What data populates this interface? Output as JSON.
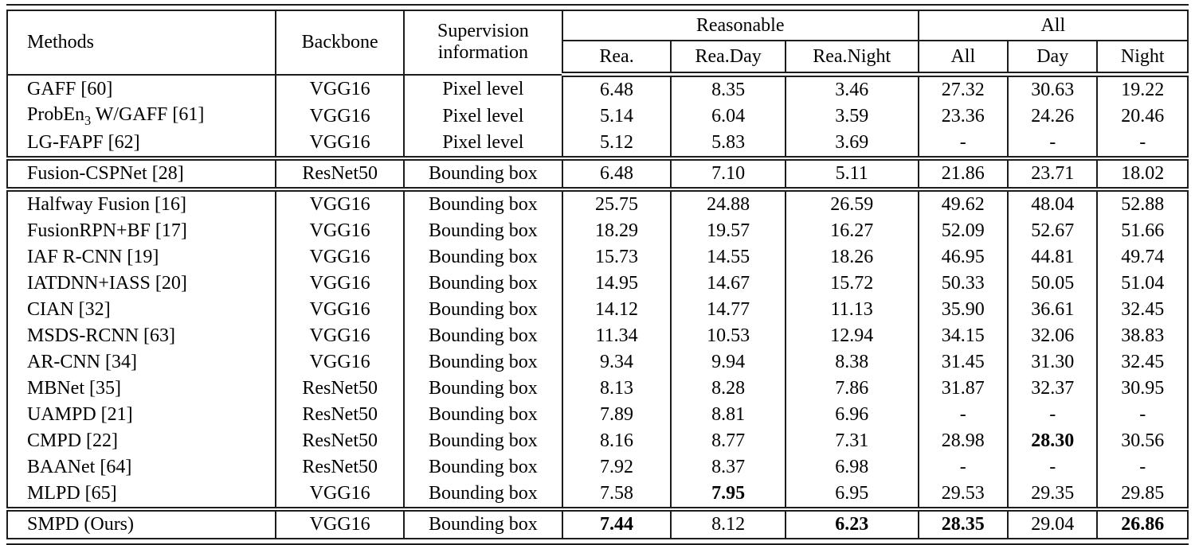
{
  "colors": {
    "text": "#000000",
    "border": "#1c1c1c",
    "background": "#ffffff"
  },
  "table": {
    "header": {
      "col_methods": "Methods",
      "col_backbone": "Backbone",
      "col_supervision": "Supervision information",
      "group_reasonable": "Reasonable",
      "group_all": "All",
      "sub_columns": [
        "Rea.",
        "Rea.Day",
        "Rea.Night",
        "All",
        "Day",
        "Night"
      ]
    },
    "groups": [
      {
        "rows": [
          {
            "method": [
              {
                "t": "GAFF [60]"
              }
            ],
            "backbone": "VGG16",
            "supervision": "Pixel level",
            "values": [
              "6.48",
              "8.35",
              "3.46",
              "27.32",
              "30.63",
              "19.22"
            ],
            "bold": [
              false,
              false,
              false,
              false,
              false,
              false
            ]
          },
          {
            "method": [
              {
                "t": "ProbEn"
              },
              {
                "t": "3",
                "sub": true
              },
              {
                "t": " W/GAFF [61]"
              }
            ],
            "backbone": "VGG16",
            "supervision": "Pixel level",
            "values": [
              "5.14",
              "6.04",
              "3.59",
              "23.36",
              "24.26",
              "20.46"
            ],
            "bold": [
              false,
              false,
              false,
              false,
              false,
              false
            ]
          },
          {
            "method": [
              {
                "t": "LG-FAPF [62]"
              }
            ],
            "backbone": "VGG16",
            "supervision": "Pixel level",
            "values": [
              "5.12",
              "5.83",
              "3.69",
              "-",
              "-",
              "-"
            ],
            "bold": [
              false,
              false,
              false,
              false,
              false,
              false
            ]
          }
        ]
      },
      {
        "rows": [
          {
            "method": [
              {
                "t": "Fusion-CSPNet [28]"
              }
            ],
            "backbone": "ResNet50",
            "supervision": "Bounding box",
            "values": [
              "6.48",
              "7.10",
              "5.11",
              "21.86",
              "23.71",
              "18.02"
            ],
            "bold": [
              false,
              false,
              false,
              false,
              false,
              false
            ]
          }
        ]
      },
      {
        "rows": [
          {
            "method": [
              {
                "t": "Halfway Fusion [16]"
              }
            ],
            "backbone": "VGG16",
            "supervision": "Bounding box",
            "values": [
              "25.75",
              "24.88",
              "26.59",
              "49.62",
              "48.04",
              "52.88"
            ],
            "bold": [
              false,
              false,
              false,
              false,
              false,
              false
            ]
          },
          {
            "method": [
              {
                "t": "FusionRPN+BF [17]"
              }
            ],
            "backbone": "VGG16",
            "supervision": "Bounding box",
            "values": [
              "18.29",
              "19.57",
              "16.27",
              "52.09",
              "52.67",
              "51.66"
            ],
            "bold": [
              false,
              false,
              false,
              false,
              false,
              false
            ]
          },
          {
            "method": [
              {
                "t": "IAF R-CNN [19]"
              }
            ],
            "backbone": "VGG16",
            "supervision": "Bounding box",
            "values": [
              "15.73",
              "14.55",
              "18.26",
              "46.95",
              "44.81",
              "49.74"
            ],
            "bold": [
              false,
              false,
              false,
              false,
              false,
              false
            ]
          },
          {
            "method": [
              {
                "t": "IATDNN+IASS [20]"
              }
            ],
            "backbone": "VGG16",
            "supervision": "Bounding box",
            "values": [
              "14.95",
              "14.67",
              "15.72",
              "50.33",
              "50.05",
              "51.04"
            ],
            "bold": [
              false,
              false,
              false,
              false,
              false,
              false
            ]
          },
          {
            "method": [
              {
                "t": "CIAN [32]"
              }
            ],
            "backbone": "VGG16",
            "supervision": "Bounding box",
            "values": [
              "14.12",
              "14.77",
              "11.13",
              "35.90",
              "36.61",
              "32.45"
            ],
            "bold": [
              false,
              false,
              false,
              false,
              false,
              false
            ]
          },
          {
            "method": [
              {
                "t": "MSDS-RCNN [63]"
              }
            ],
            "backbone": "VGG16",
            "supervision": "Bounding box",
            "values": [
              "11.34",
              "10.53",
              "12.94",
              "34.15",
              "32.06",
              "38.83"
            ],
            "bold": [
              false,
              false,
              false,
              false,
              false,
              false
            ]
          },
          {
            "method": [
              {
                "t": "AR-CNN [34]"
              }
            ],
            "backbone": "VGG16",
            "supervision": "Bounding box",
            "values": [
              "9.34",
              "9.94",
              "8.38",
              "31.45",
              "31.30",
              "32.45"
            ],
            "bold": [
              false,
              false,
              false,
              false,
              false,
              false
            ]
          },
          {
            "method": [
              {
                "t": "MBNet [35]"
              }
            ],
            "backbone": "ResNet50",
            "supervision": "Bounding box",
            "values": [
              "8.13",
              "8.28",
              "7.86",
              "31.87",
              "32.37",
              "30.95"
            ],
            "bold": [
              false,
              false,
              false,
              false,
              false,
              false
            ]
          },
          {
            "method": [
              {
                "t": "UAMPD [21]"
              }
            ],
            "backbone": "ResNet50",
            "supervision": "Bounding box",
            "values": [
              "7.89",
              "8.81",
              "6.96",
              "-",
              "-",
              "-"
            ],
            "bold": [
              false,
              false,
              false,
              false,
              false,
              false
            ]
          },
          {
            "method": [
              {
                "t": "CMPD [22]"
              }
            ],
            "backbone": "ResNet50",
            "supervision": "Bounding box",
            "values": [
              "8.16",
              "8.77",
              "7.31",
              "28.98",
              "28.30",
              "30.56"
            ],
            "bold": [
              false,
              false,
              false,
              false,
              true,
              false
            ]
          },
          {
            "method": [
              {
                "t": "BAANet [64]"
              }
            ],
            "backbone": "ResNet50",
            "supervision": "Bounding box",
            "values": [
              "7.92",
              "8.37",
              "6.98",
              "-",
              "-",
              "-"
            ],
            "bold": [
              false,
              false,
              false,
              false,
              false,
              false
            ]
          },
          {
            "method": [
              {
                "t": "MLPD [65]"
              }
            ],
            "backbone": "VGG16",
            "supervision": "Bounding box",
            "values": [
              "7.58",
              "7.95",
              "6.95",
              "29.53",
              "29.35",
              "29.85"
            ],
            "bold": [
              false,
              true,
              false,
              false,
              false,
              false
            ]
          }
        ]
      },
      {
        "rows": [
          {
            "method": [
              {
                "t": "SMPD (Ours)"
              }
            ],
            "backbone": "VGG16",
            "supervision": "Bounding box",
            "values": [
              "7.44",
              "8.12",
              "6.23",
              "28.35",
              "29.04",
              "26.86"
            ],
            "bold": [
              true,
              false,
              true,
              true,
              false,
              true
            ]
          }
        ]
      }
    ]
  }
}
